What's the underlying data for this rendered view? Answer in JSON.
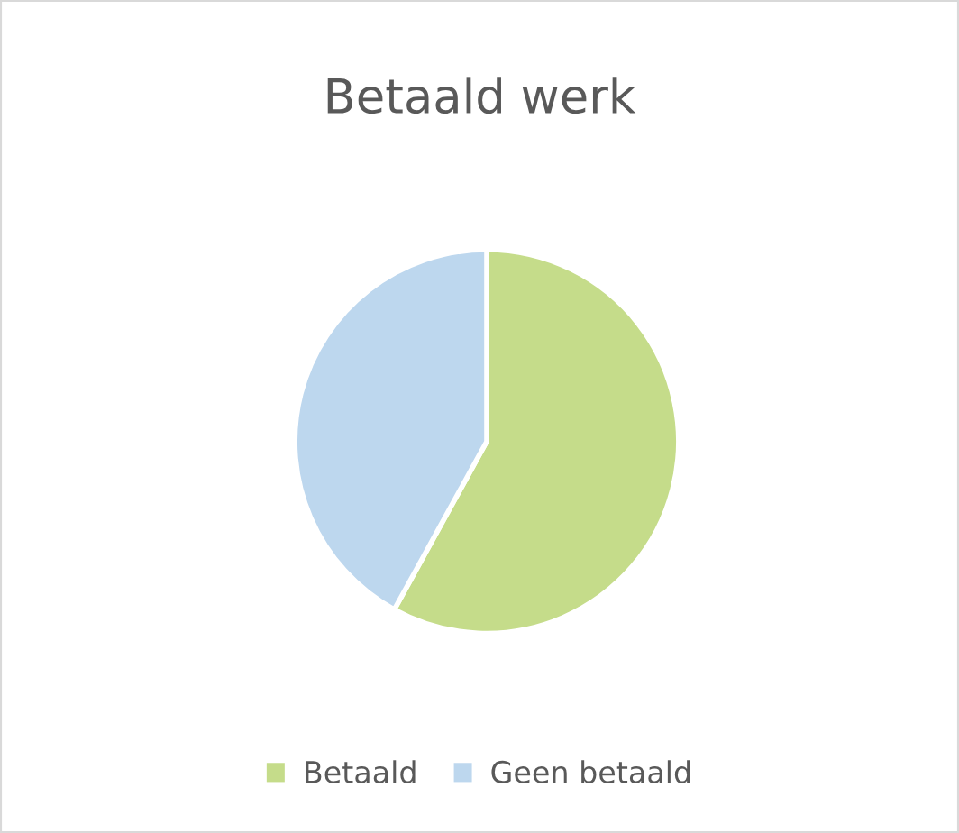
{
  "chart_data": {
    "type": "pie",
    "title": "Betaald werk",
    "categories": [
      "Betaald",
      "Geen betaald"
    ],
    "values": [
      58,
      42
    ],
    "colors": [
      "#c5dc8a",
      "#bdd7ee"
    ],
    "legend": "bottom"
  }
}
